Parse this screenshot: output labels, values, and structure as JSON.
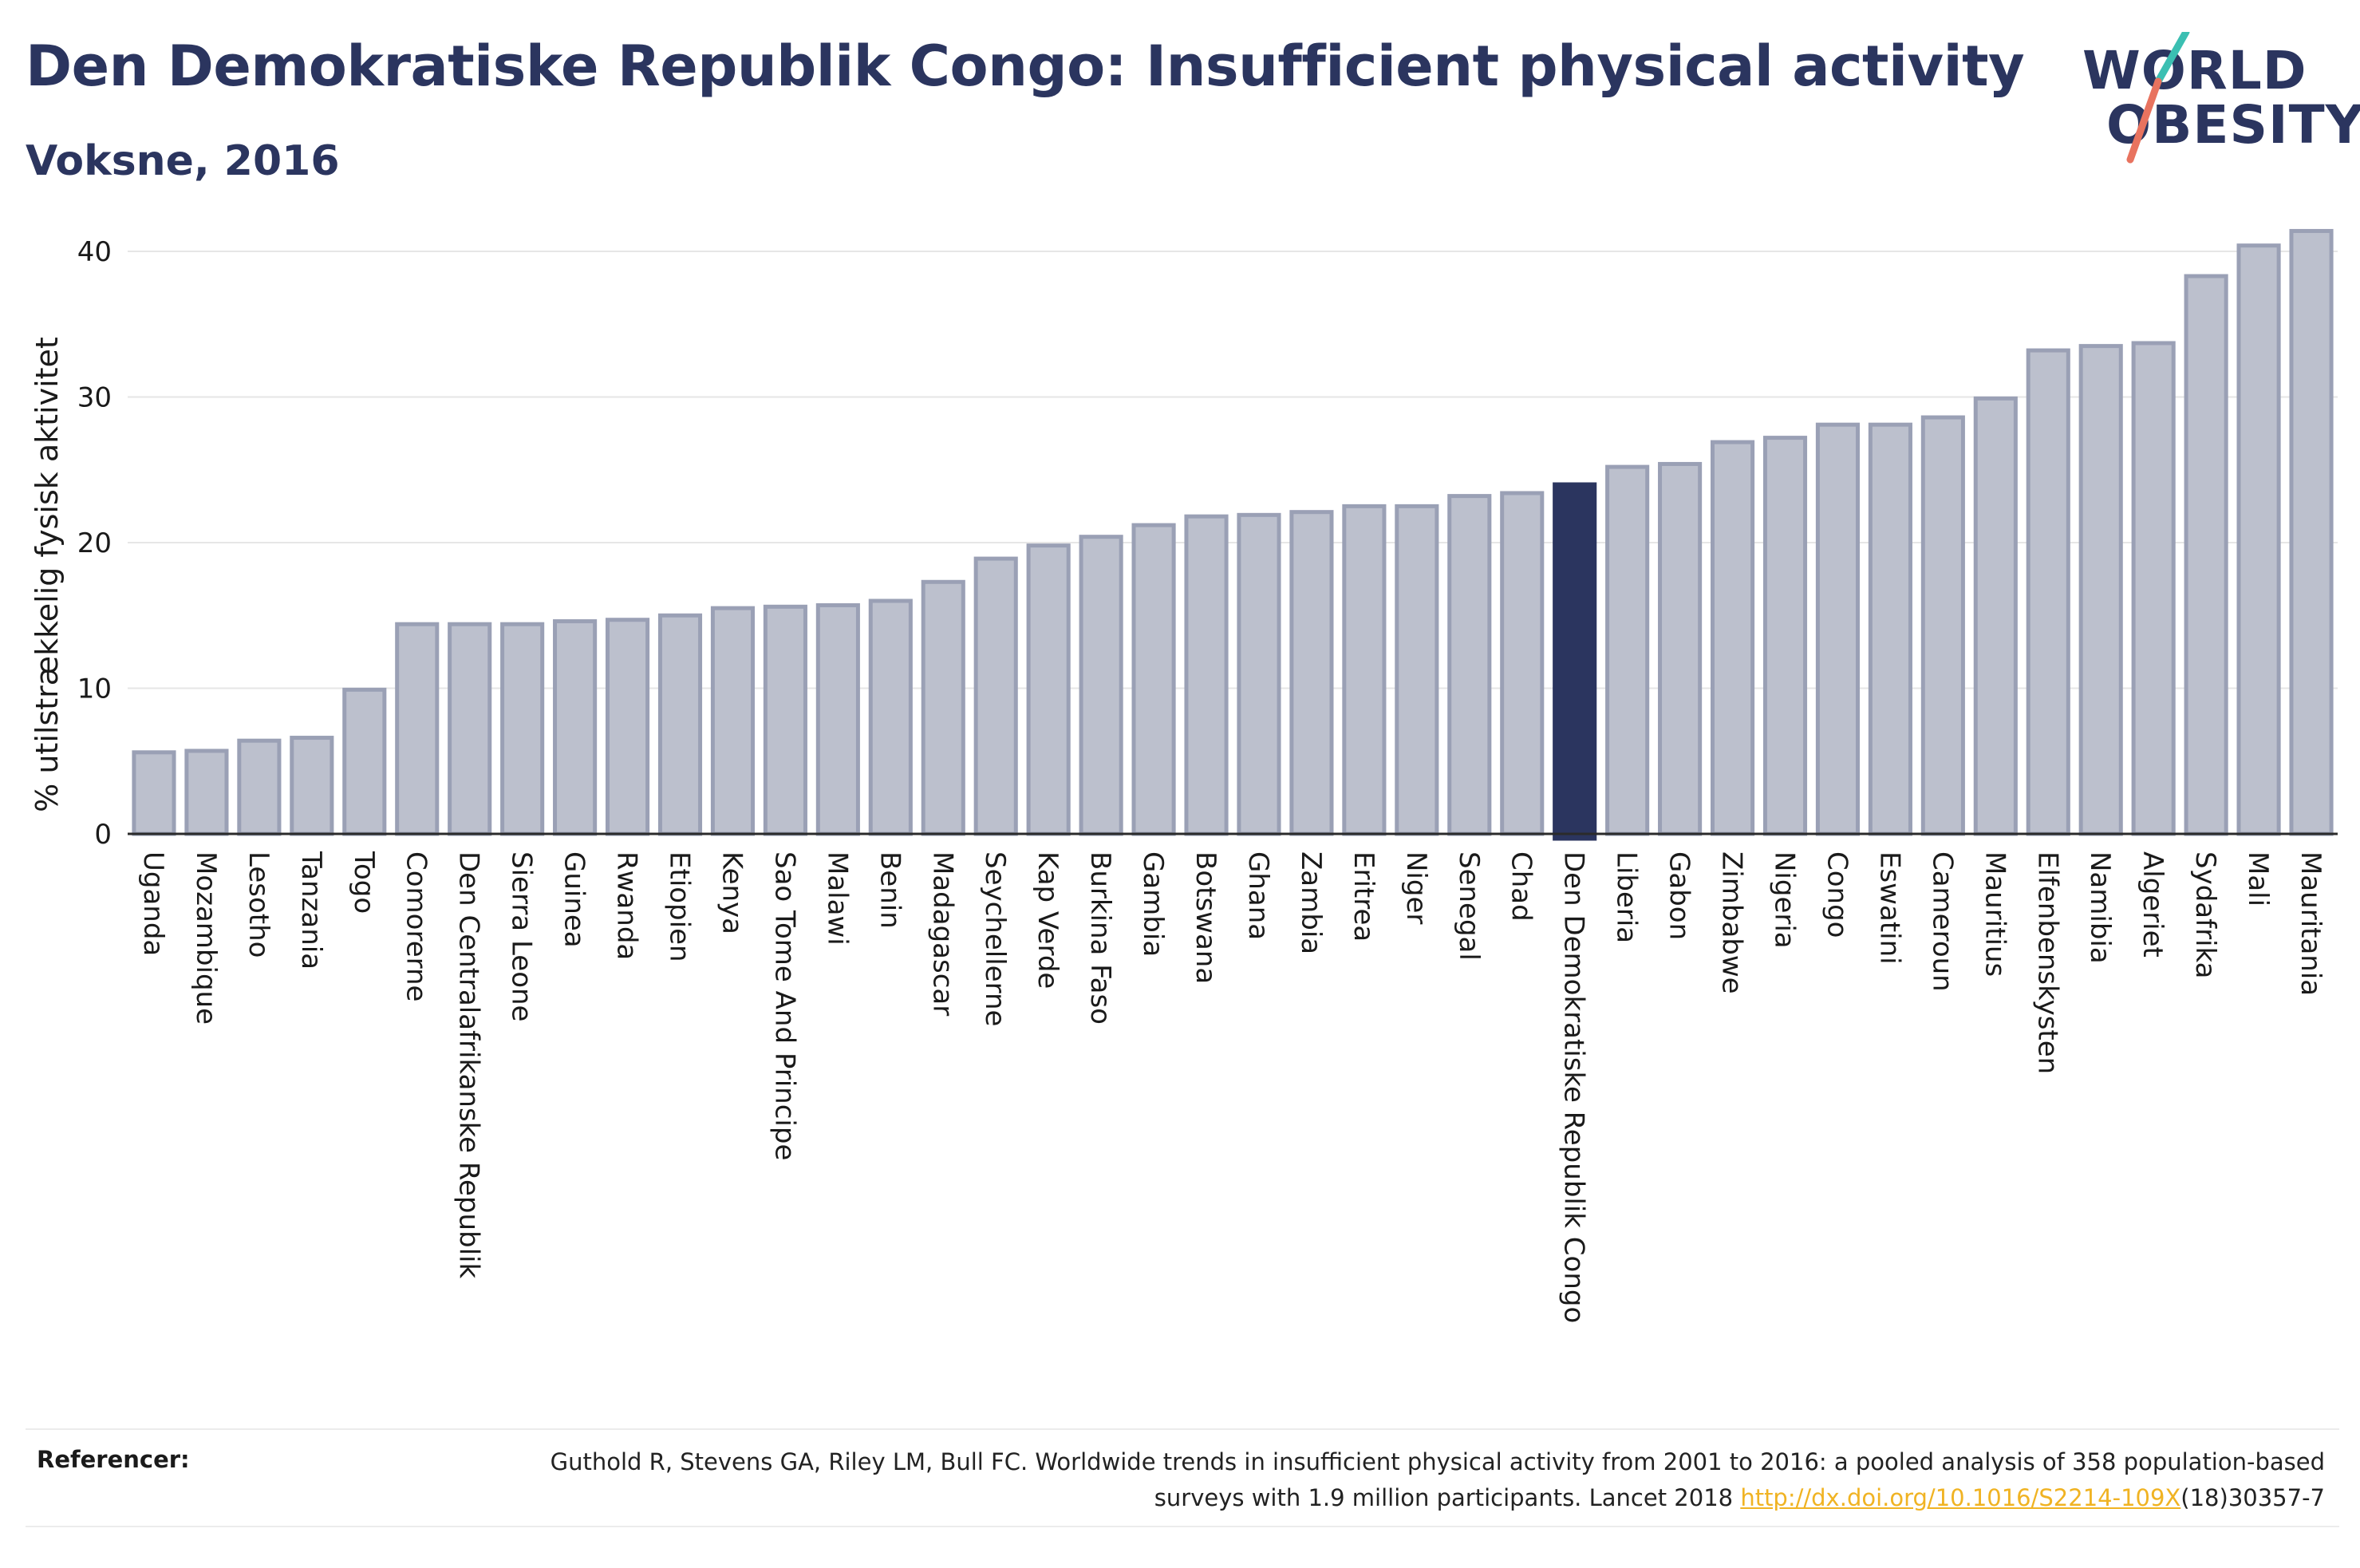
{
  "header": {
    "title": "Den Demokratiske Republik Congo: Insufficient physical activity",
    "subtitle": "Voksne, 2016"
  },
  "logo": {
    "line1": "WORLD",
    "line2": "OBESITY",
    "colors": {
      "text": "#2b355f",
      "slash_teal": "#3bbfb2",
      "slash_coral": "#e8735f"
    }
  },
  "chart_data": {
    "type": "bar",
    "ylabel": "% utilstrækkelig fysisk aktivitet",
    "xlabel": "",
    "ylim": [
      0,
      42
    ],
    "yticks": [
      0,
      10,
      20,
      30,
      40
    ],
    "grid": true,
    "highlight": "Den Demokratiske Republik Congo",
    "colors": {
      "bar": "#bcc0cd",
      "bar_edge": "#9aa0b5",
      "highlight": "#2b355f",
      "grid": "#e6e6e6"
    },
    "categories": [
      "Uganda",
      "Mozambique",
      "Lesotho",
      "Tanzania",
      "Togo",
      "Comorerne",
      "Den Centralafrikanske Republik",
      "Sierra Leone",
      "Guinea",
      "Rwanda",
      "Etiopien",
      "Kenya",
      "Sao Tome And Principe",
      "Malawi",
      "Benin",
      "Madagascar",
      "Seychellerne",
      "Kap Verde",
      "Burkina Faso",
      "Gambia",
      "Botswana",
      "Ghana",
      "Zambia",
      "Eritrea",
      "Niger",
      "Senegal",
      "Chad",
      "Den Demokratiske Republik Congo",
      "Liberia",
      "Gabon",
      "Zimbabwe",
      "Nigeria",
      "Congo",
      "Eswatini",
      "Cameroun",
      "Mauritius",
      "Elfenbenskysten",
      "Namibia",
      "Algeriet",
      "Sydafrika",
      "Mali",
      "Mauritania"
    ],
    "values": [
      5.6,
      5.7,
      6.4,
      6.6,
      9.9,
      14.4,
      14.4,
      14.4,
      14.6,
      14.7,
      15.0,
      15.5,
      15.6,
      15.7,
      16.0,
      17.3,
      18.9,
      19.8,
      20.4,
      21.2,
      21.8,
      21.9,
      22.1,
      22.5,
      22.5,
      23.2,
      23.4,
      24.0,
      25.2,
      25.4,
      26.9,
      27.2,
      28.1,
      28.1,
      28.6,
      29.9,
      33.2,
      33.5,
      33.7,
      38.3,
      40.4,
      41.4
    ]
  },
  "references": {
    "label": "Referencer:",
    "text_before_link": "Guthold R, Stevens GA, Riley LM, Bull FC. Worldwide trends in insufficient physical activity from 2001 to 2016: a pooled analysis of 358 population-based surveys with 1.9 million participants. Lancet 2018 ",
    "link_text": "http://dx.doi.org/10.1016/S2214-109X",
    "text_after_link": "(18)30357-7"
  }
}
